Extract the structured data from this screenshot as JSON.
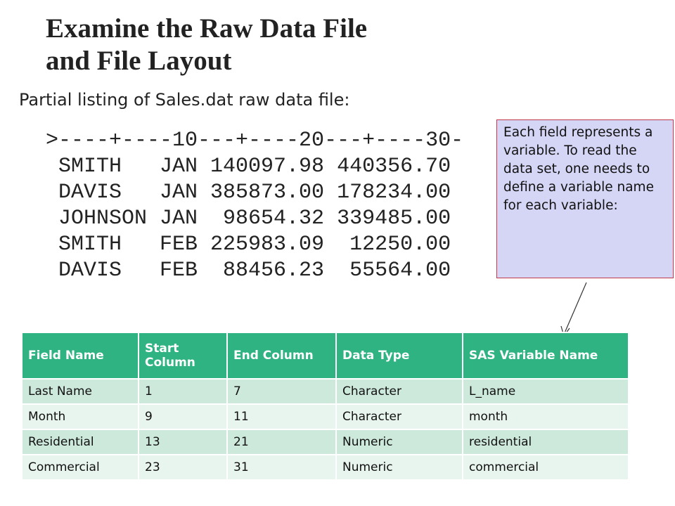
{
  "title": [
    "Examine the Raw Data File",
    "and File Layout"
  ],
  "subtitle": "Partial listing of Sales.dat raw data file:",
  "listing": [
    ">----+----10---+----20---+----30-",
    " SMITH   JAN 140097.98 440356.70",
    " DAVIS   JAN 385873.00 178234.00",
    " JOHNSON JAN  98654.32 339485.00",
    " SMITH   FEB 225983.09  12250.00",
    " DAVIS   FEB  88456.23  55564.00"
  ],
  "callout": "Each field represents a variable.  To read the data set, one needs to define a variable name for each variable:",
  "table": {
    "header": [
      "Field Name",
      "Start Column",
      "End Column",
      "Data Type",
      "SAS Variable Name"
    ],
    "rows": [
      [
        "Last Name",
        "1",
        "7",
        "Character",
        "L_name"
      ],
      [
        "Month",
        "9",
        "11",
        "Character",
        "month"
      ],
      [
        "Residential",
        "13",
        "21",
        "Numeric",
        "residential"
      ],
      [
        "Commercial",
        "23",
        "31",
        "Numeric",
        "commercial"
      ]
    ]
  }
}
